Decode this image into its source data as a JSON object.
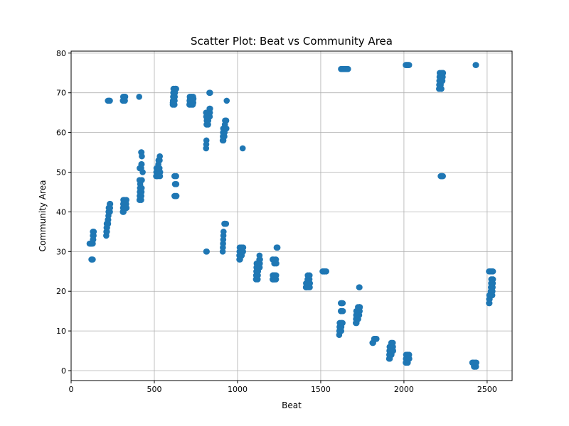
{
  "chart_data": {
    "type": "scatter",
    "title": "Scatter Plot: Beat vs Community Area",
    "xlabel": "Beat",
    "ylabel": "Community Area",
    "xlim": [
      0,
      2650
    ],
    "ylim": [
      -2.5,
      80.5
    ],
    "xticks": [
      0,
      500,
      1000,
      1500,
      2000,
      2500
    ],
    "yticks": [
      0,
      10,
      20,
      30,
      40,
      50,
      60,
      70,
      80
    ],
    "grid": true,
    "marker_color": "#1f77b4",
    "points": [
      [
        111,
        32
      ],
      [
        114,
        32
      ],
      [
        120,
        32
      ],
      [
        124,
        32
      ],
      [
        130,
        32
      ],
      [
        122,
        28
      ],
      [
        126,
        28
      ],
      [
        130,
        28
      ],
      [
        131,
        33
      ],
      [
        131,
        34
      ],
      [
        131,
        35
      ],
      [
        133,
        33
      ],
      [
        135,
        34
      ],
      [
        136,
        35
      ],
      [
        211,
        34
      ],
      [
        212,
        35
      ],
      [
        213,
        36
      ],
      [
        214,
        37
      ],
      [
        215,
        35
      ],
      [
        216,
        36
      ],
      [
        221,
        38
      ],
      [
        222,
        37
      ],
      [
        223,
        38
      ],
      [
        224,
        39
      ],
      [
        225,
        40
      ],
      [
        226,
        41
      ],
      [
        231,
        41
      ],
      [
        232,
        42
      ],
      [
        233,
        40
      ],
      [
        234,
        41
      ],
      [
        235,
        42
      ],
      [
        221,
        68
      ],
      [
        225,
        68
      ],
      [
        230,
        68
      ],
      [
        233,
        68
      ],
      [
        311,
        40
      ],
      [
        312,
        41
      ],
      [
        313,
        42
      ],
      [
        314,
        43
      ],
      [
        315,
        40
      ],
      [
        321,
        41
      ],
      [
        322,
        42
      ],
      [
        323,
        43
      ],
      [
        324,
        42
      ],
      [
        331,
        42
      ],
      [
        332,
        43
      ],
      [
        333,
        41
      ],
      [
        311,
        68
      ],
      [
        313,
        69
      ],
      [
        315,
        68
      ],
      [
        321,
        69
      ],
      [
        323,
        68
      ],
      [
        325,
        69
      ],
      [
        411,
        43
      ],
      [
        412,
        44
      ],
      [
        413,
        45
      ],
      [
        414,
        46
      ],
      [
        415,
        47
      ],
      [
        421,
        43
      ],
      [
        422,
        44
      ],
      [
        423,
        45
      ],
      [
        424,
        46
      ],
      [
        425,
        48
      ],
      [
        411,
        48
      ],
      [
        412,
        51
      ],
      [
        421,
        51
      ],
      [
        422,
        52
      ],
      [
        424,
        52
      ],
      [
        430,
        50
      ],
      [
        421,
        55
      ],
      [
        423,
        55
      ],
      [
        425,
        54
      ],
      [
        409,
        69
      ],
      [
        511,
        49
      ],
      [
        512,
        50
      ],
      [
        513,
        51
      ],
      [
        514,
        49
      ],
      [
        515,
        50
      ],
      [
        521,
        49
      ],
      [
        522,
        50
      ],
      [
        523,
        51
      ],
      [
        524,
        52
      ],
      [
        525,
        53
      ],
      [
        531,
        51
      ],
      [
        532,
        53
      ],
      [
        533,
        54
      ],
      [
        534,
        49
      ],
      [
        535,
        50
      ],
      [
        611,
        67
      ],
      [
        612,
        68
      ],
      [
        613,
        69
      ],
      [
        614,
        70
      ],
      [
        615,
        71
      ],
      [
        621,
        67
      ],
      [
        622,
        68
      ],
      [
        623,
        69
      ],
      [
        624,
        70
      ],
      [
        625,
        71
      ],
      [
        631,
        71
      ],
      [
        611,
        67.5
      ],
      [
        621,
        49
      ],
      [
        631,
        49
      ],
      [
        624,
        47
      ],
      [
        632,
        47
      ],
      [
        621,
        44
      ],
      [
        625,
        44
      ],
      [
        631,
        44
      ],
      [
        633,
        44
      ],
      [
        711,
        67
      ],
      [
        712,
        68
      ],
      [
        713,
        69
      ],
      [
        714,
        67.5
      ],
      [
        715,
        68.5
      ],
      [
        721,
        67
      ],
      [
        722,
        68
      ],
      [
        723,
        69
      ],
      [
        724,
        67.5
      ],
      [
        725,
        68.5
      ],
      [
        731,
        67
      ],
      [
        732,
        68
      ],
      [
        733,
        69
      ],
      [
        734,
        67.5
      ],
      [
        735,
        68.5
      ],
      [
        811,
        56
      ],
      [
        812,
        57
      ],
      [
        813,
        58
      ],
      [
        814,
        62
      ],
      [
        815,
        63
      ],
      [
        821,
        64
      ],
      [
        822,
        65
      ],
      [
        823,
        62
      ],
      [
        824,
        63
      ],
      [
        825,
        64
      ],
      [
        831,
        65
      ],
      [
        832,
        66
      ],
      [
        833,
        64
      ],
      [
        834,
        65
      ],
      [
        835,
        66
      ],
      [
        811,
        65
      ],
      [
        812,
        64
      ],
      [
        831,
        70
      ],
      [
        833,
        70
      ],
      [
        835,
        70
      ],
      [
        812,
        30
      ],
      [
        815,
        30
      ],
      [
        911,
        30
      ],
      [
        912,
        31
      ],
      [
        913,
        32
      ],
      [
        914,
        33
      ],
      [
        915,
        34
      ],
      [
        916,
        35
      ],
      [
        921,
        37
      ],
      [
        922,
        37
      ],
      [
        923,
        37
      ],
      [
        924,
        37
      ],
      [
        925,
        37
      ],
      [
        931,
        37
      ],
      [
        911,
        58
      ],
      [
        912,
        59
      ],
      [
        913,
        60
      ],
      [
        914,
        61
      ],
      [
        915,
        58
      ],
      [
        921,
        59
      ],
      [
        922,
        60
      ],
      [
        923,
        61
      ],
      [
        924,
        62
      ],
      [
        925,
        63
      ],
      [
        931,
        61
      ],
      [
        932,
        63
      ],
      [
        933,
        61
      ],
      [
        935,
        68
      ],
      [
        1011,
        29
      ],
      [
        1012,
        30
      ],
      [
        1013,
        31
      ],
      [
        1014,
        29
      ],
      [
        1015,
        30
      ],
      [
        1021,
        31
      ],
      [
        1022,
        29
      ],
      [
        1023,
        30
      ],
      [
        1024,
        31
      ],
      [
        1025,
        29
      ],
      [
        1031,
        30
      ],
      [
        1032,
        31
      ],
      [
        1033,
        30
      ],
      [
        1034,
        31
      ],
      [
        1011,
        28
      ],
      [
        1015,
        28
      ],
      [
        1031,
        56
      ],
      [
        1111,
        23
      ],
      [
        1112,
        24
      ],
      [
        1113,
        25
      ],
      [
        1114,
        26
      ],
      [
        1115,
        27
      ],
      [
        1121,
        23
      ],
      [
        1122,
        24
      ],
      [
        1123,
        25
      ],
      [
        1124,
        26
      ],
      [
        1125,
        27
      ],
      [
        1131,
        28
      ],
      [
        1132,
        29
      ],
      [
        1133,
        26
      ],
      [
        1134,
        27
      ],
      [
        1135,
        28
      ],
      [
        1211,
        23
      ],
      [
        1212,
        24
      ],
      [
        1213,
        23
      ],
      [
        1214,
        24
      ],
      [
        1215,
        23
      ],
      [
        1221,
        24
      ],
      [
        1222,
        23
      ],
      [
        1223,
        24
      ],
      [
        1224,
        23
      ],
      [
        1225,
        24
      ],
      [
        1231,
        23
      ],
      [
        1232,
        24
      ],
      [
        1211,
        28
      ],
      [
        1215,
        28
      ],
      [
        1221,
        27
      ],
      [
        1225,
        28
      ],
      [
        1231,
        28
      ],
      [
        1233,
        27
      ],
      [
        1235,
        31
      ],
      [
        1238,
        31
      ],
      [
        1240,
        31
      ],
      [
        1411,
        21
      ],
      [
        1412,
        22
      ],
      [
        1413,
        21
      ],
      [
        1414,
        22
      ],
      [
        1415,
        21
      ],
      [
        1421,
        23
      ],
      [
        1422,
        24
      ],
      [
        1423,
        23
      ],
      [
        1424,
        22
      ],
      [
        1425,
        21
      ],
      [
        1431,
        22
      ],
      [
        1432,
        23
      ],
      [
        1433,
        24
      ],
      [
        1434,
        21
      ],
      [
        1435,
        22
      ],
      [
        1511,
        25
      ],
      [
        1513,
        25
      ],
      [
        1515,
        25
      ],
      [
        1521,
        25
      ],
      [
        1523,
        25
      ],
      [
        1525,
        25
      ],
      [
        1531,
        25
      ],
      [
        1533,
        25
      ],
      [
        1611,
        9
      ],
      [
        1612,
        10
      ],
      [
        1613,
        11
      ],
      [
        1614,
        12
      ],
      [
        1615,
        10
      ],
      [
        1621,
        11
      ],
      [
        1622,
        12
      ],
      [
        1623,
        10
      ],
      [
        1624,
        11
      ],
      [
        1625,
        12
      ],
      [
        1631,
        12
      ],
      [
        1621,
        15
      ],
      [
        1623,
        15
      ],
      [
        1625,
        15
      ],
      [
        1633,
        15
      ],
      [
        1621,
        17
      ],
      [
        1624,
        17
      ],
      [
        1627,
        17
      ],
      [
        1632,
        17
      ],
      [
        1622,
        76
      ],
      [
        1628,
        76
      ],
      [
        1634,
        76
      ],
      [
        1640,
        76
      ],
      [
        1646,
        76
      ],
      [
        1652,
        76
      ],
      [
        1658,
        76
      ],
      [
        1664,
        76
      ],
      [
        1711,
        12
      ],
      [
        1712,
        13
      ],
      [
        1713,
        14
      ],
      [
        1714,
        15
      ],
      [
        1715,
        12
      ],
      [
        1721,
        13
      ],
      [
        1722,
        14
      ],
      [
        1723,
        15
      ],
      [
        1724,
        16
      ],
      [
        1725,
        13
      ],
      [
        1731,
        14
      ],
      [
        1732,
        16
      ],
      [
        1733,
        16
      ],
      [
        1734,
        15
      ],
      [
        1735,
        16
      ],
      [
        1731,
        21
      ],
      [
        1733,
        21
      ],
      [
        1811,
        7
      ],
      [
        1813,
        7
      ],
      [
        1815,
        7
      ],
      [
        1821,
        8
      ],
      [
        1823,
        8
      ],
      [
        1825,
        8
      ],
      [
        1831,
        8
      ],
      [
        1833,
        8
      ],
      [
        1835,
        8
      ],
      [
        1911,
        3
      ],
      [
        1912,
        4
      ],
      [
        1913,
        5
      ],
      [
        1914,
        6
      ],
      [
        1915,
        3
      ],
      [
        1921,
        4
      ],
      [
        1922,
        5
      ],
      [
        1923,
        6
      ],
      [
        1924,
        7
      ],
      [
        1925,
        4
      ],
      [
        1931,
        5
      ],
      [
        1932,
        6
      ],
      [
        1933,
        7
      ],
      [
        1934,
        6
      ],
      [
        1935,
        5
      ],
      [
        2011,
        2
      ],
      [
        2012,
        3
      ],
      [
        2013,
        4
      ],
      [
        2014,
        2
      ],
      [
        2015,
        3
      ],
      [
        2021,
        4
      ],
      [
        2022,
        3
      ],
      [
        2023,
        2
      ],
      [
        2024,
        4
      ],
      [
        2025,
        3
      ],
      [
        2031,
        4
      ],
      [
        2032,
        3
      ],
      [
        2011,
        77
      ],
      [
        2014,
        77
      ],
      [
        2017,
        77
      ],
      [
        2021,
        77
      ],
      [
        2024,
        77
      ],
      [
        2027,
        77
      ],
      [
        2031,
        77
      ],
      [
        2211,
        71
      ],
      [
        2212,
        72
      ],
      [
        2213,
        73
      ],
      [
        2214,
        74
      ],
      [
        2215,
        75
      ],
      [
        2221,
        72
      ],
      [
        2222,
        73
      ],
      [
        2223,
        74
      ],
      [
        2224,
        75
      ],
      [
        2225,
        71
      ],
      [
        2231,
        73
      ],
      [
        2232,
        75
      ],
      [
        2233,
        74
      ],
      [
        2234,
        75
      ],
      [
        2235,
        75
      ],
      [
        2221,
        49
      ],
      [
        2224,
        49
      ],
      [
        2227,
        49
      ],
      [
        2231,
        49
      ],
      [
        2234,
        49
      ],
      [
        2411,
        2
      ],
      [
        2413,
        2
      ],
      [
        2415,
        2
      ],
      [
        2421,
        1
      ],
      [
        2423,
        2
      ],
      [
        2425,
        1
      ],
      [
        2431,
        2
      ],
      [
        2433,
        1
      ],
      [
        2435,
        2
      ],
      [
        2431,
        77
      ],
      [
        2433,
        77
      ],
      [
        2511,
        17
      ],
      [
        2512,
        18
      ],
      [
        2513,
        19
      ],
      [
        2514,
        17
      ],
      [
        2515,
        18
      ],
      [
        2521,
        19
      ],
      [
        2522,
        20
      ],
      [
        2523,
        21
      ],
      [
        2524,
        22
      ],
      [
        2525,
        23
      ],
      [
        2531,
        19
      ],
      [
        2532,
        20
      ],
      [
        2533,
        21
      ],
      [
        2534,
        22
      ],
      [
        2535,
        23
      ],
      [
        2511,
        25
      ],
      [
        2515,
        25
      ],
      [
        2521,
        25
      ],
      [
        2525,
        25
      ],
      [
        2531,
        25
      ],
      [
        2535,
        25
      ]
    ]
  }
}
